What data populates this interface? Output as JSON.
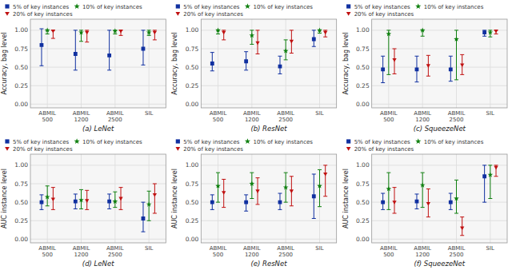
{
  "chart_data": [
    {
      "type": "errorbar",
      "x_label": "(a) LeNet",
      "y_label": "Accuracy, bag level",
      "categories": [
        "ABMIL\n500",
        "ABMIL\n1200",
        "ABMIL\n2500",
        "SIL"
      ],
      "series": [
        {
          "name": "5% of key instances",
          "color": "#1030a0",
          "marker": "square",
          "values": [
            0.8,
            0.68,
            0.66,
            0.75
          ],
          "errs_lo": [
            0.28,
            0.22,
            0.2,
            0.22
          ],
          "errs_hi": [
            0.22,
            0.32,
            0.34,
            0.25
          ]
        },
        {
          "name": "10% of key instances",
          "color": "#108010",
          "marker": "star",
          "values": [
            1.0,
            0.97,
            0.99,
            0.97
          ],
          "errs_lo": [
            0.05,
            0.12,
            0.04,
            0.04
          ],
          "errs_hi": [
            0.0,
            0.03,
            0.01,
            0.03
          ]
        },
        {
          "name": "20% of key instances",
          "color": "#c01010",
          "marker": "triangle-down",
          "values": [
            0.99,
            0.97,
            0.99,
            0.97
          ],
          "errs_lo": [
            0.1,
            0.13,
            0.06,
            0.1
          ],
          "errs_hi": [
            0.01,
            0.03,
            0.01,
            0.03
          ]
        }
      ],
      "ylim": [
        -0.05,
        1.15
      ],
      "yticks": [
        {
          "value": 0.0,
          "label": "0.00"
        },
        {
          "value": 0.25,
          "label": "0.25"
        },
        {
          "value": 0.5,
          "label": "0.50"
        },
        {
          "value": 0.75,
          "label": "0.75"
        },
        {
          "value": 1.0,
          "label": "1.00"
        }
      ],
      "grid": true,
      "legend": "top"
    },
    {
      "type": "errorbar",
      "x_label": "(b) ResNet",
      "y_label": "Accuracy, bag level",
      "categories": [
        "ABMIL\n500",
        "ABMIL\n1200",
        "ABMIL\n2500",
        "SIL"
      ],
      "series": [
        {
          "name": "5% of key instances",
          "color": "#1030a0",
          "marker": "square",
          "values": [
            0.55,
            0.58,
            0.51,
            0.88
          ],
          "errs_lo": [
            0.1,
            0.12,
            0.1,
            0.1
          ],
          "errs_hi": [
            0.15,
            0.13,
            0.14,
            0.12
          ]
        },
        {
          "name": "10% of key instances",
          "color": "#108010",
          "marker": "star",
          "values": [
            1.0,
            0.93,
            0.72,
            1.0
          ],
          "errs_lo": [
            0.05,
            0.12,
            0.12,
            0.04
          ],
          "errs_hi": [
            0.0,
            0.07,
            0.15,
            0.0
          ]
        },
        {
          "name": "20% of key instances",
          "color": "#c01010",
          "marker": "triangle-down",
          "values": [
            0.97,
            0.83,
            0.85,
            0.97
          ],
          "errs_lo": [
            0.1,
            0.15,
            0.16,
            0.06
          ],
          "errs_hi": [
            0.03,
            0.17,
            0.15,
            0.03
          ]
        }
      ],
      "ylim": [
        -0.05,
        1.15
      ],
      "yticks": [
        {
          "value": 0.0,
          "label": "0.00"
        },
        {
          "value": 0.25,
          "label": "0.25"
        },
        {
          "value": 0.5,
          "label": "0.50"
        },
        {
          "value": 0.75,
          "label": "0.75"
        },
        {
          "value": 1.0,
          "label": "1.00"
        }
      ],
      "grid": true,
      "legend": "top"
    },
    {
      "type": "errorbar",
      "x_label": "(c) SqueezeNet",
      "y_label": "Accuracy, bag level",
      "categories": [
        "ABMIL\n500",
        "ABMIL\n1200",
        "ABMIL\n2500",
        "SIL"
      ],
      "series": [
        {
          "name": "5% of key instances",
          "color": "#1030a0",
          "marker": "square",
          "values": [
            0.47,
            0.47,
            0.47,
            0.97
          ],
          "errs_lo": [
            0.18,
            0.17,
            0.16,
            0.05
          ],
          "errs_hi": [
            0.18,
            0.18,
            0.18,
            0.03
          ]
        },
        {
          "name": "10% of key instances",
          "color": "#108010",
          "marker": "star",
          "values": [
            0.95,
            1.0,
            0.88,
            0.97
          ],
          "errs_lo": [
            0.55,
            0.08,
            0.55,
            0.06
          ],
          "errs_hi": [
            0.05,
            0.0,
            0.12,
            0.03
          ]
        },
        {
          "name": "20% of key instances",
          "color": "#c01010",
          "marker": "triangle-down",
          "values": [
            0.6,
            0.52,
            0.53,
            0.99
          ],
          "errs_lo": [
            0.19,
            0.14,
            0.13,
            0.04
          ],
          "errs_hi": [
            0.15,
            0.14,
            0.14,
            0.01
          ]
        }
      ],
      "ylim": [
        -0.05,
        1.15
      ],
      "yticks": [
        {
          "value": 0.0,
          "label": "0.00"
        },
        {
          "value": 0.25,
          "label": "0.25"
        },
        {
          "value": 0.5,
          "label": "0.50"
        },
        {
          "value": 0.75,
          "label": "0.75"
        },
        {
          "value": 1.0,
          "label": "1.00"
        }
      ],
      "grid": true,
      "legend": "top"
    },
    {
      "type": "errorbar",
      "x_label": "(d) LeNet",
      "y_label": "AUC instance level",
      "categories": [
        "ABMIL\n500",
        "ABMIL\n1200",
        "ABMIL\n2500",
        "SIL"
      ],
      "series": [
        {
          "name": "5% of key instances",
          "color": "#1030a0",
          "marker": "square",
          "values": [
            0.5,
            0.51,
            0.51,
            0.28
          ],
          "errs_lo": [
            0.1,
            0.1,
            0.1,
            0.18
          ],
          "errs_hi": [
            0.1,
            0.1,
            0.1,
            0.22
          ]
        },
        {
          "name": "10% of key instances",
          "color": "#108010",
          "marker": "star",
          "values": [
            0.57,
            0.53,
            0.51,
            0.47
          ],
          "errs_lo": [
            0.12,
            0.12,
            0.08,
            0.22
          ],
          "errs_hi": [
            0.15,
            0.14,
            0.13,
            0.18
          ]
        },
        {
          "name": "20% of key instances",
          "color": "#c01010",
          "marker": "triangle-down",
          "values": [
            0.54,
            0.52,
            0.55,
            0.6
          ],
          "errs_lo": [
            0.14,
            0.12,
            0.15,
            0.25
          ],
          "errs_hi": [
            0.16,
            0.14,
            0.15,
            0.15
          ]
        }
      ],
      "ylim": [
        -0.05,
        1.15
      ],
      "yticks": [
        {
          "value": 0.0,
          "label": "0.00"
        },
        {
          "value": 0.25,
          "label": "0.25"
        },
        {
          "value": 0.5,
          "label": "0.50"
        },
        {
          "value": 0.75,
          "label": "0.75"
        },
        {
          "value": 1.0,
          "label": "1.00"
        }
      ],
      "grid": true,
      "legend": "top"
    },
    {
      "type": "errorbar",
      "x_label": "(e) ResNet",
      "y_label": "AUC instance level",
      "categories": [
        "ABMIL\n500",
        "ABMIL\n1200",
        "ABMIL\n2500",
        "SIL"
      ],
      "series": [
        {
          "name": "5% of key instances",
          "color": "#1030a0",
          "marker": "square",
          "values": [
            0.5,
            0.5,
            0.5,
            0.58
          ],
          "errs_lo": [
            0.1,
            0.12,
            0.1,
            0.3
          ],
          "errs_hi": [
            0.1,
            0.1,
            0.12,
            0.3
          ]
        },
        {
          "name": "10% of key instances",
          "color": "#108010",
          "marker": "star",
          "values": [
            0.72,
            0.75,
            0.7,
            0.72
          ],
          "errs_lo": [
            0.22,
            0.2,
            0.2,
            0.28
          ],
          "errs_hi": [
            0.18,
            0.15,
            0.2,
            0.22
          ]
        },
        {
          "name": "20% of key instances",
          "color": "#c01010",
          "marker": "triangle-down",
          "values": [
            0.63,
            0.65,
            0.65,
            0.88
          ],
          "errs_lo": [
            0.2,
            0.18,
            0.2,
            0.3
          ],
          "errs_hi": [
            0.18,
            0.18,
            0.2,
            0.12
          ]
        }
      ],
      "ylim": [
        -0.05,
        1.15
      ],
      "yticks": [
        {
          "value": 0.0,
          "label": "0.00"
        },
        {
          "value": 0.25,
          "label": "0.25"
        },
        {
          "value": 0.5,
          "label": "0.50"
        },
        {
          "value": 0.75,
          "label": "0.75"
        },
        {
          "value": 1.0,
          "label": "1.00"
        }
      ],
      "grid": true,
      "legend": "top"
    },
    {
      "type": "errorbar",
      "x_label": "(f) SqueezeNet",
      "y_label": "AUC instance level",
      "categories": [
        "ABMIL\n500",
        "ABMIL\n1200",
        "ABMIL\n2500",
        "SIL"
      ],
      "series": [
        {
          "name": "5% of key instances",
          "color": "#1030a0",
          "marker": "square",
          "values": [
            0.5,
            0.51,
            0.5,
            0.85
          ],
          "errs_lo": [
            0.1,
            0.1,
            0.1,
            0.35
          ],
          "errs_hi": [
            0.12,
            0.1,
            0.12,
            0.15
          ]
        },
        {
          "name": "10% of key instances",
          "color": "#108010",
          "marker": "star",
          "values": [
            0.68,
            0.73,
            0.55,
            0.87
          ],
          "errs_lo": [
            0.28,
            0.3,
            0.2,
            0.32
          ],
          "errs_hi": [
            0.22,
            0.17,
            0.25,
            0.13
          ]
        },
        {
          "name": "20% of key instances",
          "color": "#c01010",
          "marker": "triangle-down",
          "values": [
            0.5,
            0.48,
            0.15,
            0.97
          ],
          "errs_lo": [
            0.15,
            0.18,
            0.1,
            0.12
          ],
          "errs_hi": [
            0.2,
            0.2,
            0.15,
            0.03
          ]
        }
      ],
      "ylim": [
        -0.05,
        1.15
      ],
      "yticks": [
        {
          "value": 0.0,
          "label": "0.00"
        },
        {
          "value": 0.25,
          "label": "0.25"
        },
        {
          "value": 0.5,
          "label": "0.50"
        },
        {
          "value": 0.75,
          "label": "0.75"
        },
        {
          "value": 1.0,
          "label": "1.00"
        }
      ],
      "grid": true,
      "legend": "top"
    }
  ]
}
